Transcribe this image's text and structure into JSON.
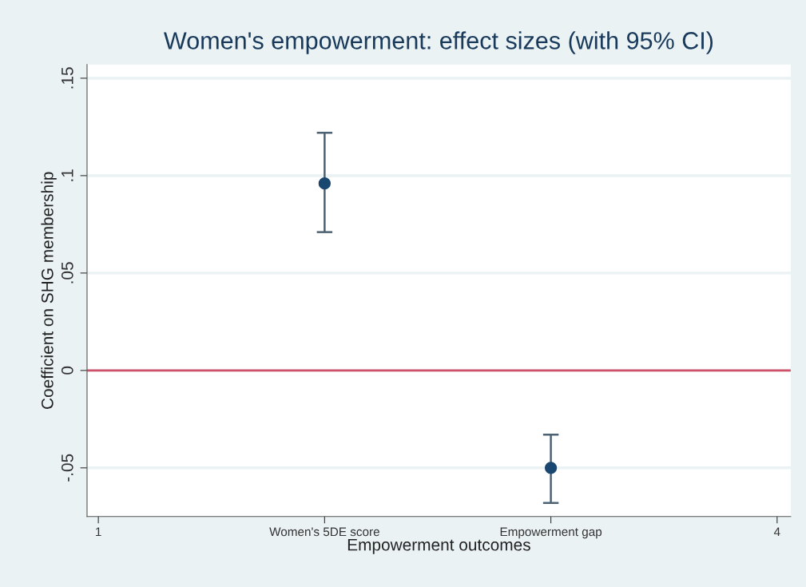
{
  "chart_data": {
    "type": "scatter",
    "title": "Women's empowerment: effect sizes (with 95% CI)",
    "xlabel": "Empowerment outcomes",
    "ylabel": "Coefficient on SHG membership",
    "x": [
      2,
      3
    ],
    "series": [
      {
        "color": "#1a476f",
        "values": [
          0.096,
          -0.05
        ],
        "errors": [
          [
            0.071,
            0.122
          ],
          [
            -0.068,
            -0.033
          ]
        ]
      }
    ],
    "xlim": [
      0.95,
      4.06
    ],
    "xticks": [
      1,
      {
        "value": 2,
        "label": "Women's 5DE score"
      },
      {
        "value": 3,
        "label": "Empowerment gap"
      },
      4
    ],
    "ylim": [
      -0.075,
      0.157
    ],
    "yticks": [
      {
        "value": -0.05,
        "label": "-.05"
      },
      0,
      {
        "value": 0.05,
        "label": ".05"
      },
      {
        "value": 0.1,
        "label": ".1"
      },
      {
        "value": 0.15,
        "label": ".15"
      }
    ],
    "ref_lines": [
      {
        "axis": "y",
        "value": 0,
        "color": "#d0506a"
      }
    ],
    "grid": "y",
    "marker": "circle"
  }
}
